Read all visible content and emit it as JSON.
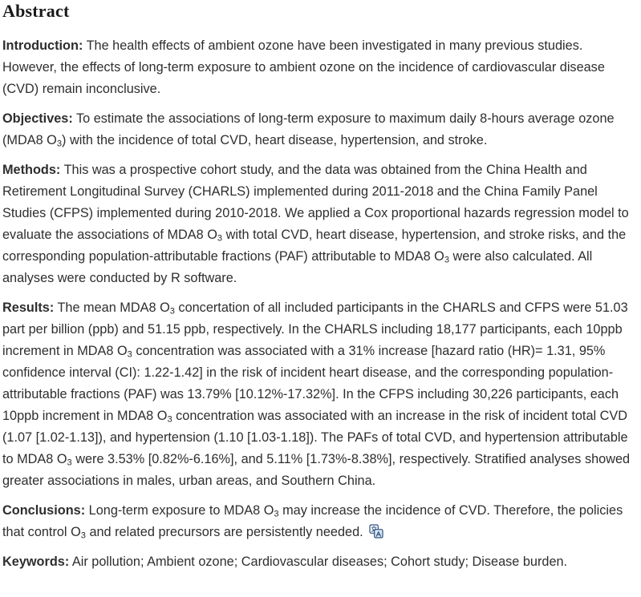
{
  "colors": {
    "background": "#ffffff",
    "body_text": "#2e2e2e",
    "heading_text": "#1a1a1a",
    "icon_stroke": "#2d4f7c",
    "icon_fill": "#d9e6f4"
  },
  "heading": "Abstract",
  "paragraphs": [
    {
      "id": "introduction",
      "label": "Introduction:",
      "segments": [
        {
          "text": " The health effects of ambient ozone have been investigated in many previous studies. However, the effects of long-term exposure to ambient ozone on the incidence of cardiovascular disease (CVD) remain inconclusive."
        }
      ]
    },
    {
      "id": "objectives",
      "label": "Objectives:",
      "segments": [
        {
          "text": " To estimate the associations of long-term exposure to maximum daily 8-hours average ozone (MDA8 O"
        },
        {
          "text": "3",
          "sub": true
        },
        {
          "text": ") with the incidence of total CVD, heart disease, hypertension, and stroke."
        }
      ]
    },
    {
      "id": "methods",
      "label": "Methods:",
      "segments": [
        {
          "text": " This was a prospective cohort study, and the data was obtained from the China Health and Retirement Longitudinal Survey (CHARLS) implemented during 2011-2018 and the China Family Panel Studies (CFPS) implemented during 2010-2018. We applied a Cox proportional hazards regression model to evaluate the associations of MDA8 O"
        },
        {
          "text": "3",
          "sub": true
        },
        {
          "text": " with total CVD, heart disease, hypertension, and stroke risks, and the corresponding population-attributable fractions (PAF) attributable to MDA8 O"
        },
        {
          "text": "3",
          "sub": true
        },
        {
          "text": " were also calculated. All analyses were conducted by R software."
        }
      ]
    },
    {
      "id": "results",
      "label": "Results:",
      "segments": [
        {
          "text": " The mean MDA8 O"
        },
        {
          "text": "3",
          "sub": true
        },
        {
          "text": " concertation of all included participants in the CHARLS and CFPS were 51.03 part per billion (ppb) and 51.15 ppb, respectively. In the CHARLS including 18,177 participants, each 10ppb increment in MDA8 O"
        },
        {
          "text": "3",
          "sub": true
        },
        {
          "text": " concentration was associated with a 31% increase [hazard ratio (HR)= 1.31, 95% confidence interval (CI): 1.22-1.42] in the risk of incident heart disease, and the corresponding population-attributable fractions (PAF) was 13.79% [10.12%-17.32%]. In the CFPS including 30,226 participants, each 10ppb increment in MDA8 O"
        },
        {
          "text": "3",
          "sub": true
        },
        {
          "text": " concentration was associated with an increase in the risk of incident total CVD (1.07 [1.02-1.13]), and hypertension (1.10 [1.03-1.18]). The PAFs of total CVD, and hypertension attributable to MDA8 O"
        },
        {
          "text": "3",
          "sub": true
        },
        {
          "text": " were 3.53% [0.82%-6.16%], and 5.11% [1.73%-8.38%], respectively. Stratified analyses showed greater associations in males, urban areas, and Southern China."
        }
      ]
    },
    {
      "id": "conclusions",
      "label": "Conclusions:",
      "segments": [
        {
          "text": " Long-term exposure to MDA8 O"
        },
        {
          "text": "3",
          "sub": true
        },
        {
          "text": " may increase the incidence of CVD. Therefore, the policies that control O"
        },
        {
          "text": "3",
          "sub": true
        },
        {
          "text": " and related precursors are persistently needed. "
        }
      ],
      "trailing_icon": "translate-icon"
    },
    {
      "id": "keywords",
      "label": "Keywords:",
      "segments": [
        {
          "text": " Air pollution; Ambient ozone; Cardiovascular diseases; Cohort study; Disease burden."
        }
      ]
    }
  ]
}
